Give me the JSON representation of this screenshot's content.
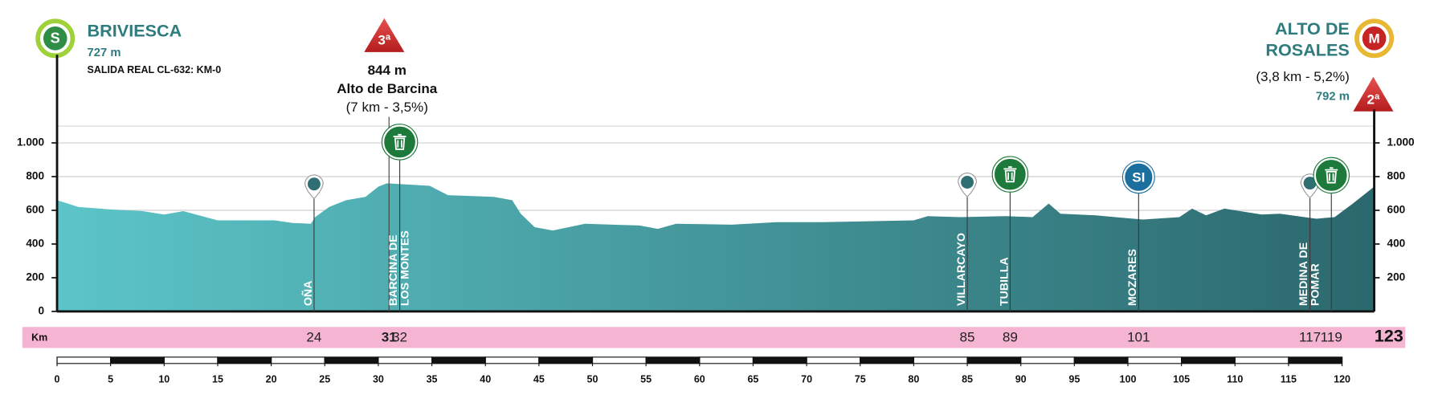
{
  "chart_data": {
    "type": "area",
    "gradient": [
      "#5cc5c8",
      "#2b686d"
    ],
    "x": [
      0,
      2,
      5,
      8,
      10,
      11.8,
      15,
      17.7,
      20.3,
      22,
      23.7,
      24.1,
      25.4,
      27,
      28.8,
      30,
      30.8,
      32.3,
      34.8,
      36.5,
      40.8,
      42.5,
      43.3,
      44.6,
      46.3,
      49.3,
      54.4,
      56.1,
      57.8,
      63,
      67.2,
      71.5,
      75.8,
      80,
      81.3,
      84.3,
      88.6,
      91.1,
      92.6,
      93.7,
      97,
      101.4,
      104.8,
      106,
      107.3,
      109,
      112.5,
      114.2,
      117.6,
      119.3,
      121,
      123
    ],
    "values": [
      660,
      620,
      605,
      595,
      575,
      595,
      540,
      540,
      540,
      525,
      520,
      560,
      620,
      660,
      680,
      740,
      760,
      755,
      745,
      690,
      680,
      660,
      580,
      500,
      480,
      520,
      510,
      490,
      520,
      515,
      530,
      530,
      535,
      540,
      565,
      560,
      565,
      560,
      640,
      580,
      570,
      545,
      560,
      610,
      570,
      610,
      575,
      580,
      550,
      560,
      640,
      740
    ],
    "xlim": [
      0,
      123
    ],
    "ylim": [
      0,
      1100
    ],
    "yticks": [
      0,
      200,
      400,
      600,
      800,
      {
        "value": 1000,
        "label": "1.000"
      }
    ],
    "y2lim": [
      0,
      1100
    ],
    "y2ticks": [
      200,
      400,
      600,
      800,
      {
        "value": 1000,
        "label": "1.000"
      }
    ],
    "xticks": [
      0,
      5,
      10,
      15,
      20,
      25,
      30,
      35,
      40,
      45,
      50,
      55,
      60,
      65,
      70,
      75,
      80,
      85,
      90,
      95,
      100,
      105,
      110,
      115,
      120
    ],
    "grid": true,
    "km_title": "Km",
    "start": {
      "badge": "S",
      "name": "BRIVIESCA",
      "altitude": "727 m",
      "note": "SALIDA REAL CL-632:  KM-0"
    },
    "finish": {
      "badge": "M",
      "name": [
        "ALTO DE",
        "ROSALES"
      ],
      "details": "(3,8 km - 5,2%)",
      "altitude": "792 m",
      "category": "2ª"
    },
    "climb": {
      "category": "3ª",
      "altitude": "844 m",
      "name": "Alto de Barcina",
      "details": "(7 km - 3,5%)"
    },
    "points": [
      {
        "km": 24,
        "label": [
          "OÑA"
        ],
        "icon": "pin"
      },
      {
        "km": 31,
        "bold": true,
        "icon": "climb"
      },
      {
        "km": 32,
        "label": [
          "BARCINA DE",
          "LOS MONTES"
        ],
        "icon": "feed"
      },
      {
        "km": 85,
        "label": [
          "VILLARCAYO"
        ],
        "icon": "pin"
      },
      {
        "km": 89,
        "label": [
          "TUBILLA"
        ],
        "icon": "feed"
      },
      {
        "km": 101,
        "label": [
          "MOZARES"
        ],
        "icon": "sprint",
        "icon_text": "SI"
      },
      {
        "km": 117,
        "label": [
          "MEDINA DE",
          "POMAR"
        ],
        "icon": "pin"
      },
      {
        "km": 119,
        "icon": "feed"
      },
      {
        "km": 123,
        "bold": true,
        "large": true
      }
    ]
  }
}
